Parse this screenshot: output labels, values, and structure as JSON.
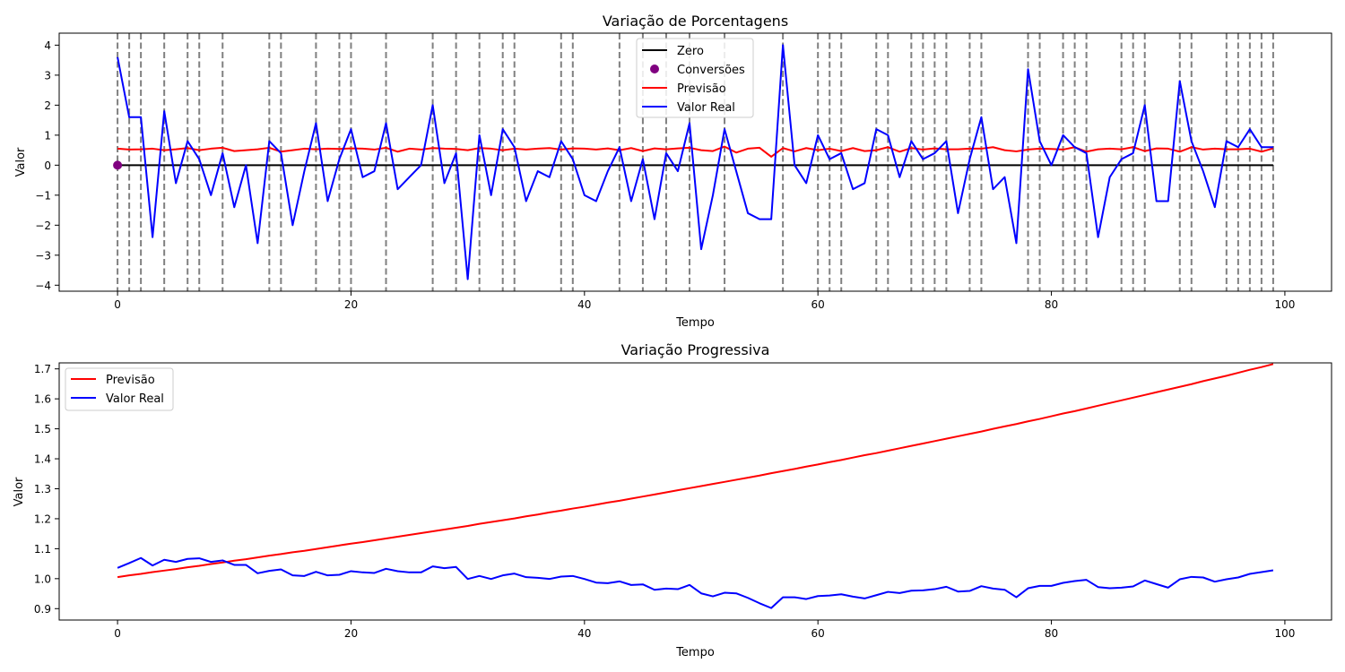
{
  "chart_data": [
    {
      "type": "line",
      "title": "Variação de Porcentagens",
      "xlabel": "Tempo",
      "ylabel": "Valor",
      "xlim": [
        -5,
        104
      ],
      "ylim": [
        -4.2,
        4.4
      ],
      "xticks": [
        0,
        20,
        40,
        60,
        80,
        100
      ],
      "xtick_labels": [
        "0",
        "20",
        "40",
        "60",
        "80",
        "100"
      ],
      "yticks": [
        -4,
        -3,
        -2,
        -1,
        0,
        1,
        2,
        3,
        4
      ],
      "ytick_labels": [
        "−4",
        "−3",
        "−2",
        "−1",
        "0",
        "1",
        "2",
        "3",
        "4"
      ],
      "grid": false,
      "legend_position": "upper-center",
      "colors": {
        "zero": "#000000",
        "conversoes": "#800080",
        "previsao": "#ff0000",
        "valor_real": "#0000ff",
        "vlines": "#808080"
      },
      "x": [
        0,
        1,
        2,
        3,
        4,
        5,
        6,
        7,
        8,
        9,
        10,
        11,
        12,
        13,
        14,
        15,
        16,
        17,
        18,
        19,
        20,
        21,
        22,
        23,
        24,
        25,
        26,
        27,
        28,
        29,
        30,
        31,
        32,
        33,
        34,
        35,
        36,
        37,
        38,
        39,
        40,
        41,
        42,
        43,
        44,
        45,
        46,
        47,
        48,
        49,
        50,
        51,
        52,
        53,
        54,
        55,
        56,
        57,
        58,
        59,
        60,
        61,
        62,
        63,
        64,
        65,
        66,
        67,
        68,
        69,
        70,
        71,
        72,
        73,
        74,
        75,
        76,
        77,
        78,
        79,
        80,
        81,
        82,
        83,
        84,
        85,
        86,
        87,
        88,
        89,
        90,
        91,
        92,
        93,
        94,
        95,
        96,
        97,
        98,
        99
      ],
      "series": [
        {
          "name": "Zero",
          "kind": "hline",
          "y": 0
        },
        {
          "name": "Conversões",
          "kind": "scatter",
          "points": [
            [
              0,
              0
            ]
          ]
        },
        {
          "name": "Previsão",
          "kind": "line",
          "values": [
            0.55,
            0.52,
            0.53,
            0.55,
            0.5,
            0.53,
            0.57,
            0.5,
            0.55,
            0.58,
            0.47,
            0.5,
            0.53,
            0.58,
            0.45,
            0.5,
            0.55,
            0.53,
            0.55,
            0.54,
            0.56,
            0.55,
            0.52,
            0.58,
            0.45,
            0.55,
            0.52,
            0.57,
            0.55,
            0.54,
            0.5,
            0.57,
            0.55,
            0.5,
            0.55,
            0.52,
            0.55,
            0.57,
            0.52,
            0.56,
            0.55,
            0.52,
            0.56,
            0.5,
            0.57,
            0.47,
            0.56,
            0.53,
            0.56,
            0.58,
            0.5,
            0.47,
            0.62,
            0.42,
            0.55,
            0.58,
            0.28,
            0.57,
            0.46,
            0.57,
            0.5,
            0.55,
            0.47,
            0.57,
            0.47,
            0.5,
            0.6,
            0.45,
            0.57,
            0.52,
            0.56,
            0.53,
            0.53,
            0.55,
            0.55,
            0.6,
            0.5,
            0.46,
            0.52,
            0.55,
            0.54,
            0.52,
            0.6,
            0.45,
            0.53,
            0.55,
            0.53,
            0.6,
            0.47,
            0.56,
            0.55,
            0.45,
            0.6,
            0.52,
            0.55,
            0.53,
            0.53,
            0.55,
            0.45,
            0.56
          ]
        },
        {
          "name": "Valor Real",
          "kind": "line",
          "values": [
            3.6,
            1.6,
            1.6,
            -2.4,
            1.8,
            -0.6,
            0.8,
            0.2,
            -1.0,
            0.4,
            -1.4,
            0.0,
            -2.6,
            0.8,
            0.4,
            -2.0,
            -0.2,
            1.4,
            -1.2,
            0.2,
            1.2,
            -0.4,
            -0.2,
            1.4,
            -0.8,
            -0.4,
            0.0,
            2.0,
            -0.6,
            0.4,
            -3.8,
            1.0,
            -1.0,
            1.2,
            0.6,
            -1.2,
            -0.2,
            -0.4,
            0.8,
            0.2,
            -1.0,
            -1.2,
            -0.2,
            0.6,
            -1.2,
            0.2,
            -1.8,
            0.4,
            -0.2,
            1.4,
            -2.8,
            -1.0,
            1.2,
            -0.2,
            -1.6,
            -1.8,
            -1.8,
            4.0,
            0.0,
            -0.6,
            1.0,
            0.2,
            0.4,
            -0.8,
            -0.6,
            1.2,
            1.0,
            -0.4,
            0.8,
            0.2,
            0.4,
            0.8,
            -1.6,
            0.2,
            1.6,
            -0.8,
            -0.4,
            -2.6,
            3.2,
            0.8,
            0.0,
            1.0,
            0.6,
            0.4,
            -2.4,
            -0.4,
            0.2,
            0.4,
            2.0,
            -1.2,
            -1.2,
            2.8,
            0.8,
            -0.2,
            -1.4,
            0.8,
            0.6,
            1.2,
            0.6,
            0.6
          ]
        }
      ],
      "vlines_x": [
        0,
        1,
        2,
        4,
        6,
        7,
        9,
        13,
        14,
        17,
        19,
        20,
        23,
        27,
        29,
        31,
        33,
        34,
        38,
        39,
        43,
        45,
        47,
        49,
        52,
        57,
        60,
        61,
        62,
        65,
        66,
        68,
        69,
        70,
        71,
        73,
        74,
        78,
        79,
        81,
        82,
        83,
        86,
        87,
        88,
        91,
        92,
        95,
        96,
        97,
        98,
        99
      ]
    },
    {
      "type": "line",
      "title": "Variação Progressiva",
      "xlabel": "Tempo",
      "ylabel": "Valor",
      "xlim": [
        -5,
        104
      ],
      "ylim": [
        0.862,
        1.72
      ],
      "xticks": [
        0,
        20,
        40,
        60,
        80,
        100
      ],
      "xtick_labels": [
        "0",
        "20",
        "40",
        "60",
        "80",
        "100"
      ],
      "yticks": [
        0.9,
        1.0,
        1.1,
        1.2,
        1.3,
        1.4,
        1.5,
        1.6,
        1.7
      ],
      "ytick_labels": [
        "0.9",
        "1.0",
        "1.1",
        "1.2",
        "1.3",
        "1.4",
        "1.5",
        "1.6",
        "1.7"
      ],
      "grid": false,
      "legend_position": "upper-left",
      "colors": {
        "previsao": "#ff0000",
        "valor_real": "#0000ff"
      },
      "x": [
        0,
        1,
        2,
        3,
        4,
        5,
        6,
        7,
        8,
        9,
        10,
        11,
        12,
        13,
        14,
        15,
        16,
        17,
        18,
        19,
        20,
        21,
        22,
        23,
        24,
        25,
        26,
        27,
        28,
        29,
        30,
        31,
        32,
        33,
        34,
        35,
        36,
        37,
        38,
        39,
        40,
        41,
        42,
        43,
        44,
        45,
        46,
        47,
        48,
        49,
        50,
        51,
        52,
        53,
        54,
        55,
        56,
        57,
        58,
        59,
        60,
        61,
        62,
        63,
        64,
        65,
        66,
        67,
        68,
        69,
        70,
        71,
        72,
        73,
        74,
        75,
        76,
        77,
        78,
        79,
        80,
        81,
        82,
        83,
        84,
        85,
        86,
        87,
        88,
        89,
        90,
        91,
        92,
        93,
        94,
        95,
        96,
        97,
        98,
        99
      ],
      "series": [
        {
          "name": "Previsão",
          "kind": "line",
          "values": [
            1.005,
            1.011,
            1.016,
            1.022,
            1.027,
            1.032,
            1.038,
            1.043,
            1.049,
            1.054,
            1.06,
            1.065,
            1.071,
            1.077,
            1.082,
            1.088,
            1.093,
            1.099,
            1.105,
            1.111,
            1.117,
            1.122,
            1.128,
            1.134,
            1.14,
            1.146,
            1.152,
            1.158,
            1.164,
            1.17,
            1.176,
            1.183,
            1.189,
            1.195,
            1.201,
            1.208,
            1.214,
            1.221,
            1.227,
            1.234,
            1.24,
            1.247,
            1.254,
            1.26,
            1.267,
            1.274,
            1.281,
            1.288,
            1.295,
            1.302,
            1.309,
            1.316,
            1.323,
            1.33,
            1.337,
            1.344,
            1.352,
            1.359,
            1.366,
            1.374,
            1.381,
            1.389,
            1.396,
            1.404,
            1.412,
            1.419,
            1.427,
            1.435,
            1.443,
            1.451,
            1.459,
            1.467,
            1.475,
            1.483,
            1.491,
            1.5,
            1.508,
            1.516,
            1.525,
            1.533,
            1.542,
            1.551,
            1.559,
            1.568,
            1.577,
            1.586,
            1.595,
            1.604,
            1.613,
            1.622,
            1.631,
            1.64,
            1.649,
            1.659,
            1.668,
            1.677,
            1.687,
            1.697,
            1.706,
            1.716
          ]
        },
        {
          "name": "Valor Real",
          "kind": "line",
          "values": [
            1.036,
            1.052,
            1.069,
            1.044,
            1.063,
            1.056,
            1.066,
            1.068,
            1.056,
            1.061,
            1.046,
            1.046,
            1.018,
            1.026,
            1.031,
            1.011,
            1.009,
            1.023,
            1.011,
            1.013,
            1.025,
            1.021,
            1.019,
            1.033,
            1.025,
            1.021,
            1.021,
            1.041,
            1.035,
            1.039,
            0.999,
            1.009,
            0.999,
            1.011,
            1.017,
            1.005,
            1.003,
            0.999,
            1.007,
            1.009,
            0.999,
            0.987,
            0.985,
            0.991,
            0.979,
            0.981,
            0.963,
            0.967,
            0.965,
            0.979,
            0.951,
            0.941,
            0.953,
            0.951,
            0.936,
            0.918,
            0.902,
            0.938,
            0.938,
            0.932,
            0.942,
            0.944,
            0.948,
            0.94,
            0.934,
            0.945,
            0.956,
            0.952,
            0.96,
            0.961,
            0.965,
            0.973,
            0.957,
            0.959,
            0.975,
            0.967,
            0.963,
            0.938,
            0.968,
            0.976,
            0.976,
            0.986,
            0.992,
            0.996,
            0.972,
            0.968,
            0.97,
            0.974,
            0.994,
            0.982,
            0.97,
            0.998,
            1.006,
            1.004,
            0.99,
            0.998,
            1.004,
            1.016,
            1.022,
            1.028
          ]
        }
      ]
    }
  ]
}
